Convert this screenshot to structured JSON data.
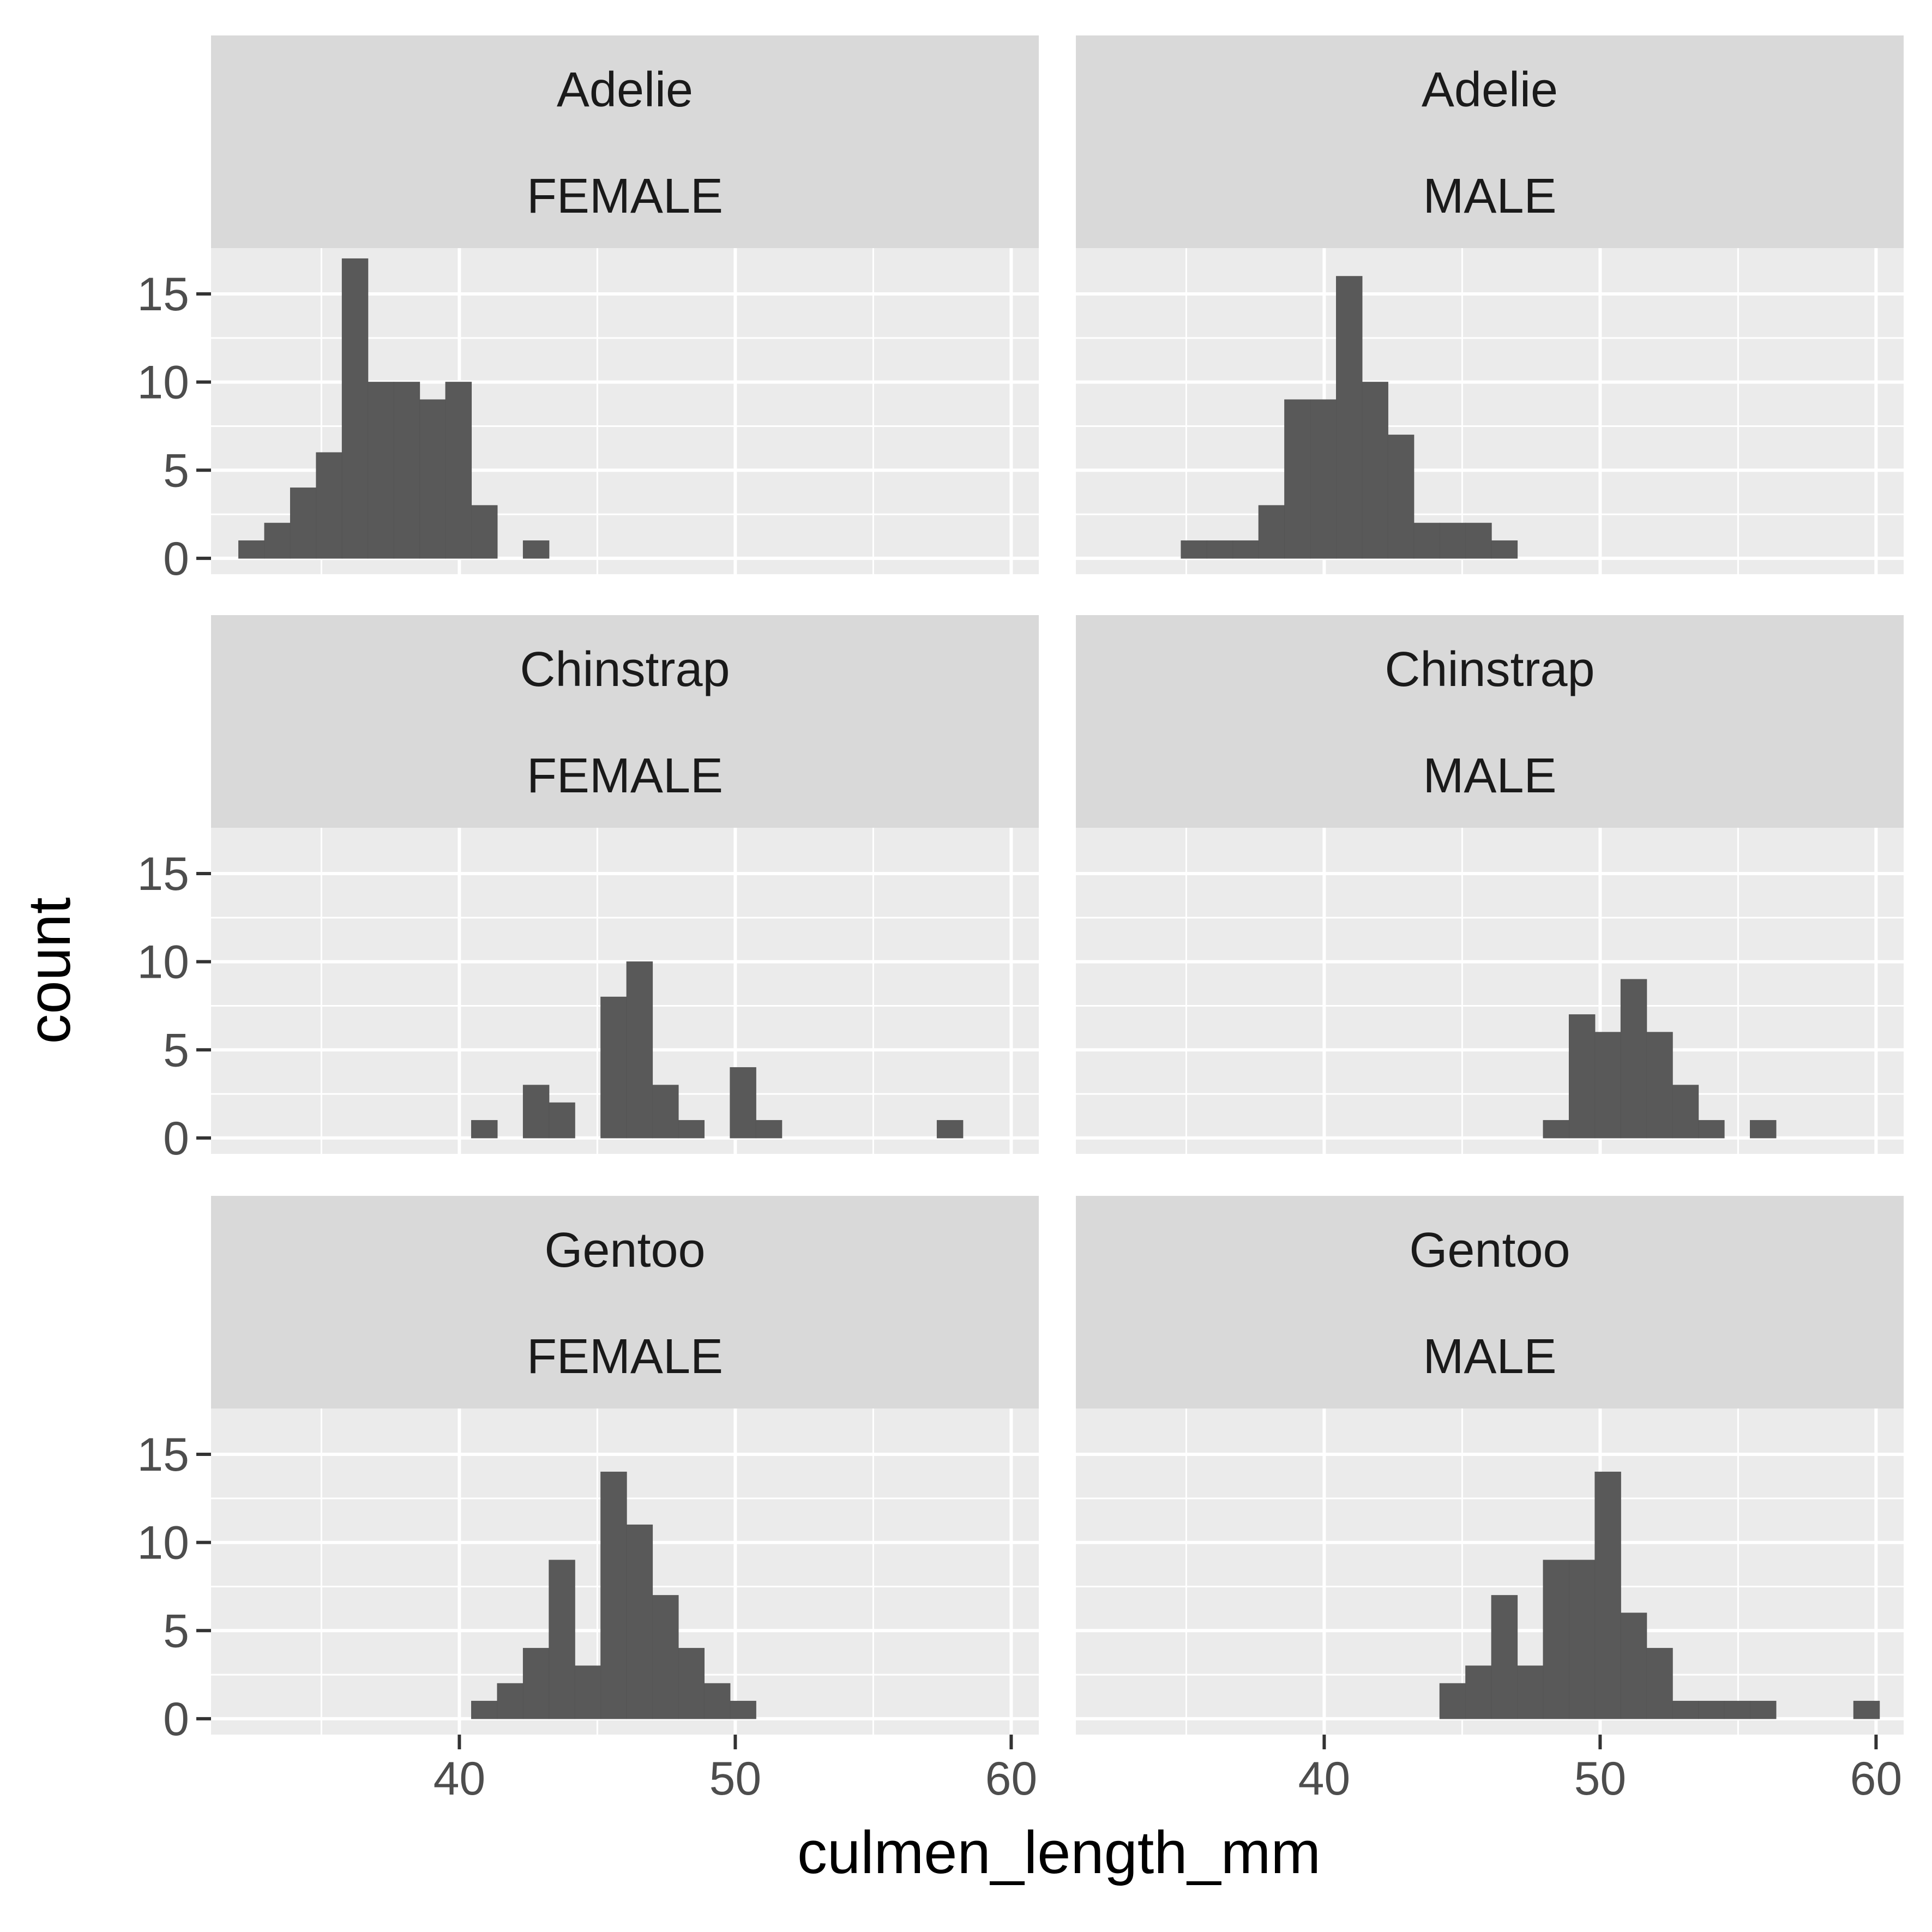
{
  "chart_data": {
    "type": "bar",
    "xlabel": "culmen_length_mm",
    "ylabel": "count",
    "xlim": [
      31,
      61
    ],
    "ylim": [
      -0.9,
      17.6
    ],
    "x_ticks": [
      40,
      50,
      60
    ],
    "x_minor": [
      35,
      45,
      55
    ],
    "y_ticks": [
      0,
      5,
      10,
      15
    ],
    "y_minor": [
      2.5,
      7.5,
      12.5
    ],
    "bin_width": 0.9375,
    "grid": true,
    "colors": {
      "bar": "#595959",
      "panel": "#ebebeb",
      "strip": "#d9d9d9",
      "grid": "#ffffff"
    },
    "facets": [
      {
        "species": "Adelie",
        "sex": "FEMALE",
        "row": 0,
        "col": 0,
        "bins": [
          [
            32.0,
            1
          ],
          [
            32.9375,
            2
          ],
          [
            33.875,
            4
          ],
          [
            34.8125,
            6
          ],
          [
            35.75,
            17
          ],
          [
            36.6875,
            10
          ],
          [
            37.625,
            10
          ],
          [
            38.5625,
            9
          ],
          [
            39.5,
            10
          ],
          [
            40.4375,
            3
          ],
          [
            42.3125,
            1
          ]
        ]
      },
      {
        "species": "Adelie",
        "sex": "MALE",
        "row": 0,
        "col": 1,
        "bins": [
          [
            34.8125,
            1
          ],
          [
            35.75,
            1
          ],
          [
            36.6875,
            1
          ],
          [
            37.625,
            3
          ],
          [
            38.5625,
            9
          ],
          [
            39.5,
            9
          ],
          [
            40.4375,
            16
          ],
          [
            41.375,
            10
          ],
          [
            42.3125,
            7
          ],
          [
            43.25,
            2
          ],
          [
            44.1875,
            2
          ],
          [
            45.125,
            2
          ],
          [
            46.0625,
            1
          ]
        ]
      },
      {
        "species": "Chinstrap",
        "sex": "FEMALE",
        "row": 1,
        "col": 0,
        "bins": [
          [
            40.4375,
            1
          ],
          [
            42.3125,
            3
          ],
          [
            43.25,
            2
          ],
          [
            45.125,
            8
          ],
          [
            46.0625,
            10
          ],
          [
            47.0,
            3
          ],
          [
            47.9375,
            1
          ],
          [
            49.8125,
            4
          ],
          [
            50.75,
            1
          ],
          [
            57.3125,
            1
          ]
        ]
      },
      {
        "species": "Chinstrap",
        "sex": "MALE",
        "row": 1,
        "col": 1,
        "bins": [
          [
            47.9375,
            1
          ],
          [
            48.875,
            7
          ],
          [
            49.8125,
            6
          ],
          [
            50.75,
            9
          ],
          [
            51.6875,
            6
          ],
          [
            52.625,
            3
          ],
          [
            53.5625,
            1
          ],
          [
            55.4375,
            1
          ]
        ]
      },
      {
        "species": "Gentoo",
        "sex": "FEMALE",
        "row": 2,
        "col": 0,
        "bins": [
          [
            40.4375,
            1
          ],
          [
            41.375,
            2
          ],
          [
            42.3125,
            4
          ],
          [
            43.25,
            9
          ],
          [
            44.1875,
            3
          ],
          [
            45.125,
            14
          ],
          [
            46.0625,
            11
          ],
          [
            47.0,
            7
          ],
          [
            47.9375,
            4
          ],
          [
            48.875,
            2
          ],
          [
            49.8125,
            1
          ]
        ]
      },
      {
        "species": "Gentoo",
        "sex": "MALE",
        "row": 2,
        "col": 1,
        "bins": [
          [
            44.1875,
            2
          ],
          [
            45.125,
            3
          ],
          [
            46.0625,
            7
          ],
          [
            47.0,
            3
          ],
          [
            47.9375,
            9
          ],
          [
            48.875,
            9
          ],
          [
            49.8125,
            14
          ],
          [
            50.75,
            6
          ],
          [
            51.6875,
            4
          ],
          [
            52.625,
            1
          ],
          [
            53.5625,
            1
          ],
          [
            54.5,
            1
          ],
          [
            55.4375,
            1
          ],
          [
            59.1875,
            1
          ]
        ]
      }
    ]
  }
}
